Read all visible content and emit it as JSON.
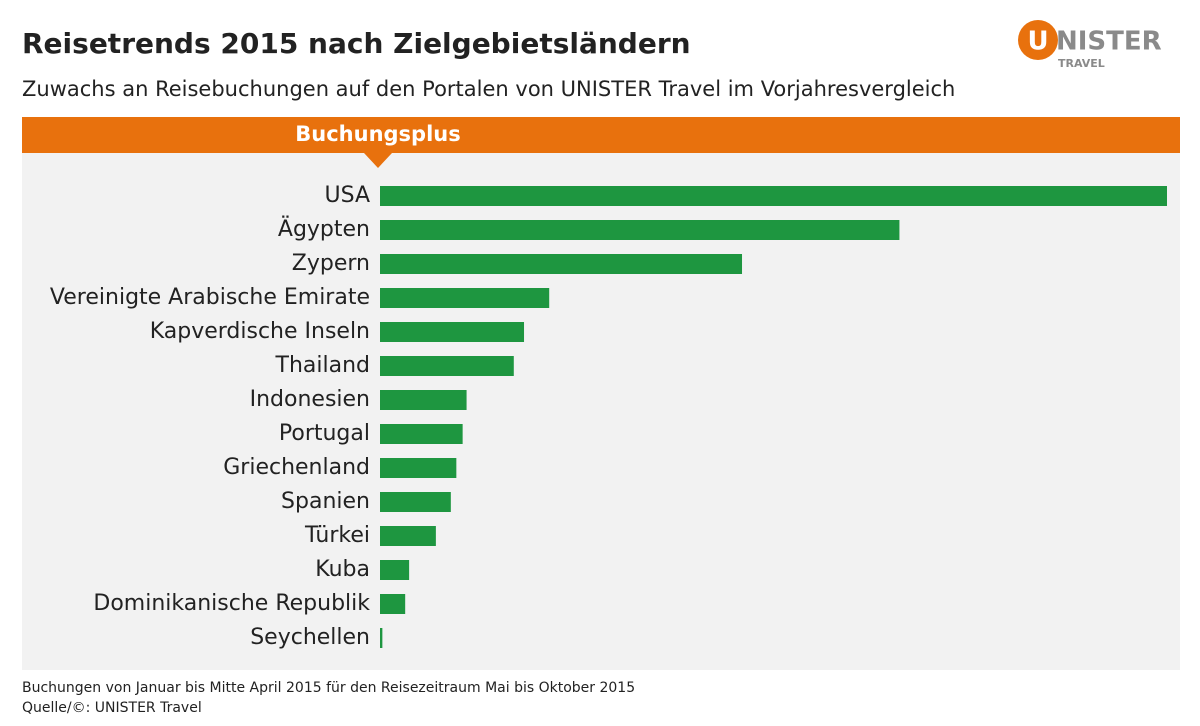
{
  "chart_data": {
    "type": "bar",
    "orientation": "horizontal",
    "title": "Reisetrends 2015 nach Zielgebietsländern",
    "subtitle": "Zuwachs an Reisebuchungen auf den Portalen von UNISTER Travel im Vorjahresvergleich",
    "header": "Buchungsplus",
    "categories": [
      "USA",
      "Ägypten",
      "Zypern",
      "Vereinigte Arabische Emirate",
      "Kapverdische Inseln",
      "Thailand",
      "Indonesien",
      "Portugal",
      "Griechenland",
      "Spanien",
      "Türkei",
      "Kuba",
      "Dominikanische Republik",
      "Seychellen"
    ],
    "values": [
      100,
      66,
      46,
      21.5,
      18.3,
      17,
      11,
      10.5,
      9.7,
      9,
      7.1,
      3.7,
      3.2,
      0.3
    ],
    "color": "#1e9640",
    "notes": [
      "Buchungen von Januar bis Mitte April 2015 für den Reisezeitraum Mai bis Oktober 2015",
      "Quelle/©: UNISTER Travel"
    ]
  },
  "logo": {
    "initial": "U",
    "rest": "NISTER",
    "sub": "TRAVEL"
  }
}
